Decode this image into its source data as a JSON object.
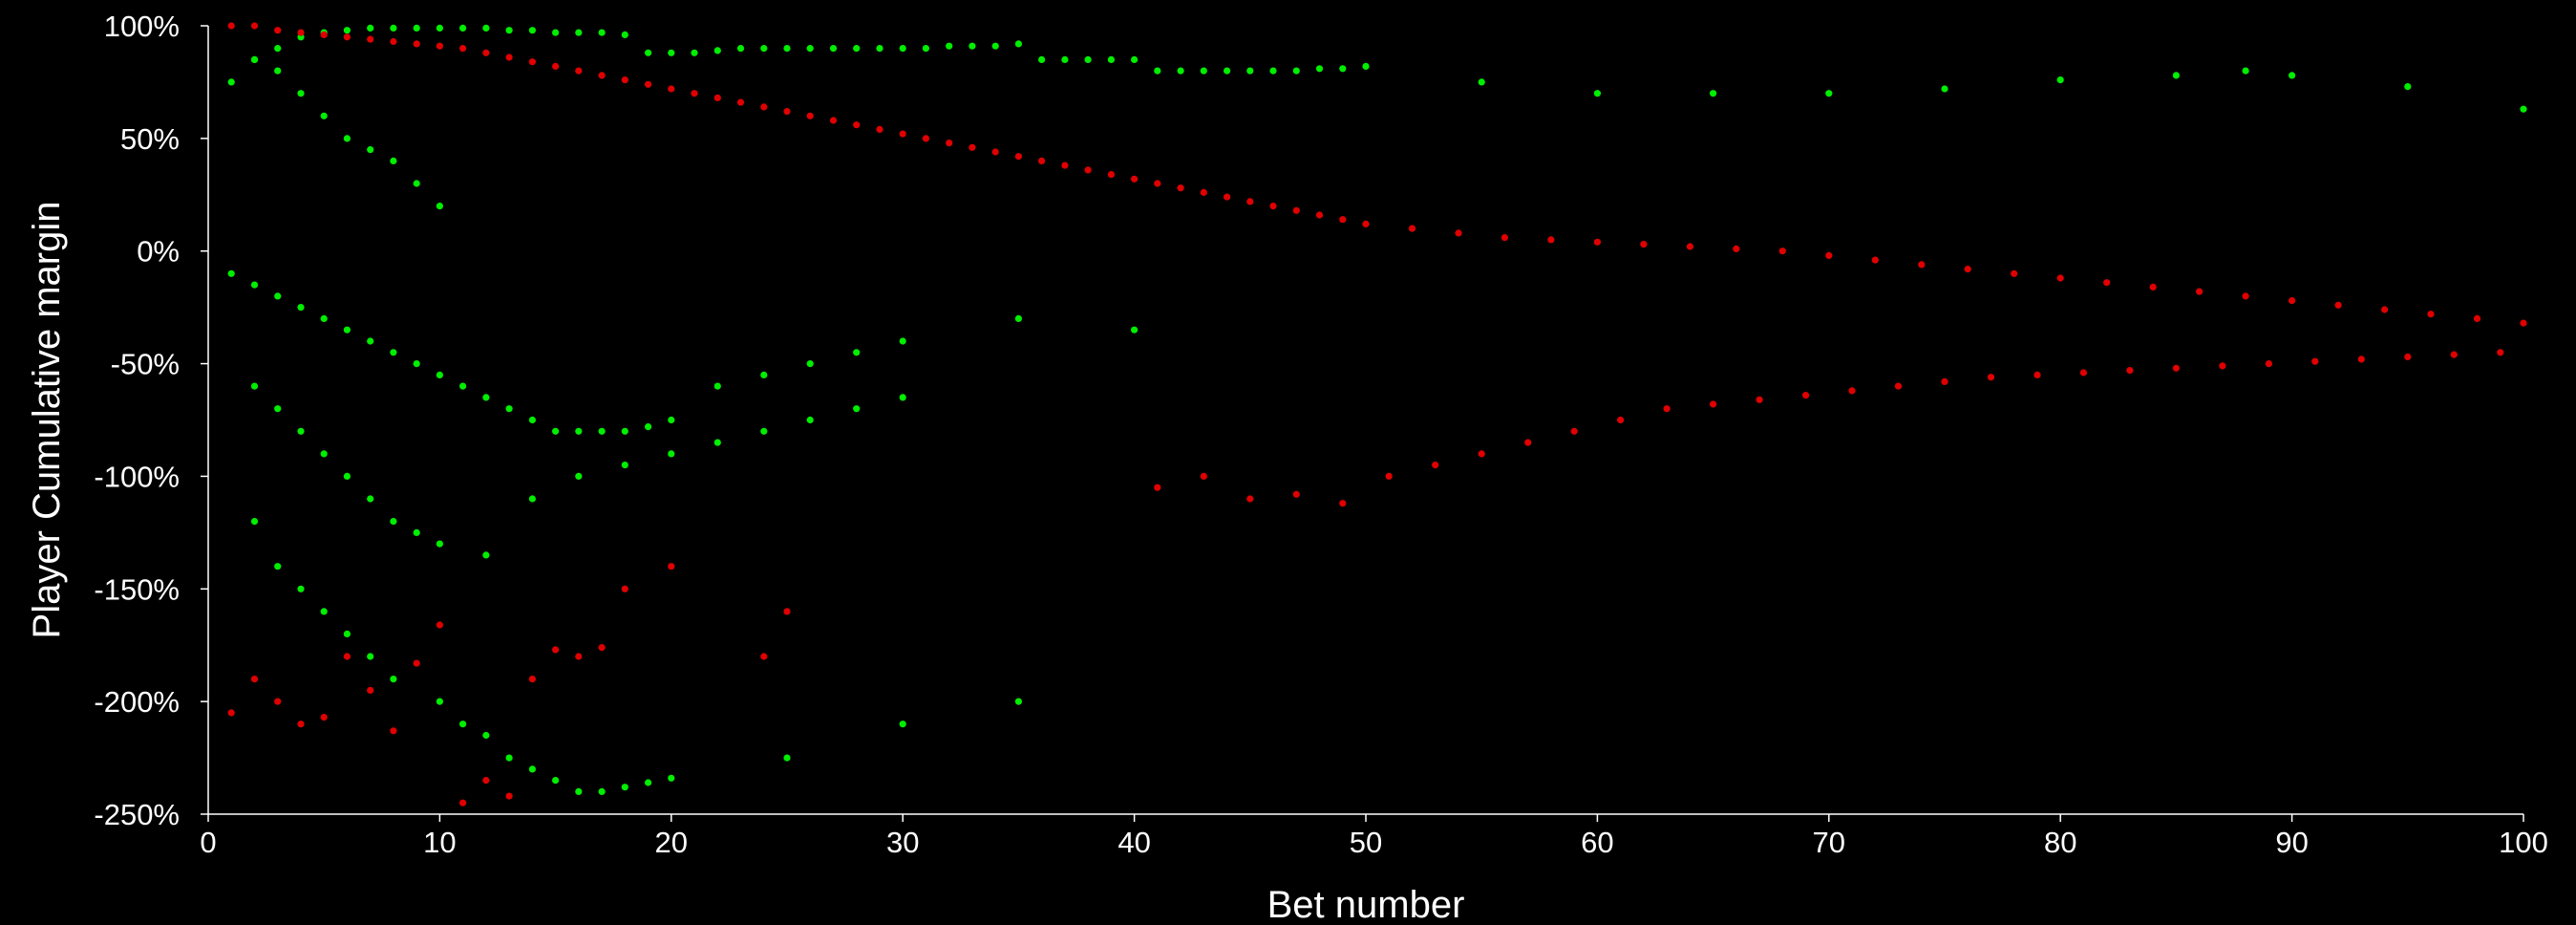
{
  "chart_data": {
    "type": "scatter",
    "title": "",
    "xlabel": "Bet number",
    "ylabel": "Player Cumulative margin",
    "xlim": [
      0,
      100
    ],
    "ylim": [
      -250,
      100
    ],
    "x_ticks": [
      0,
      10,
      20,
      30,
      40,
      50,
      60,
      70,
      80,
      90,
      100
    ],
    "x_tick_labels": [
      "0",
      "10",
      "20",
      "30",
      "40",
      "50",
      "60",
      "70",
      "80",
      "90",
      "100"
    ],
    "y_ticks": [
      100,
      50,
      0,
      -50,
      -100,
      -150,
      -200,
      -250
    ],
    "y_tick_labels": [
      "100%",
      "50%",
      "0%",
      "-50%",
      "-100%",
      "-150%",
      "-200%",
      "-250%"
    ],
    "grid": false,
    "legend": "none",
    "colors": {
      "background": "#000000",
      "positive": "#00ee00",
      "negative": "#e00000",
      "text": "#ffffff",
      "axis": "#ffffff"
    },
    "series": [
      {
        "color": "#00ee00",
        "x": [
          2,
          3,
          4,
          5,
          6,
          7,
          8,
          9,
          10,
          11,
          12,
          13,
          14,
          15,
          16,
          17,
          18,
          19,
          20,
          21,
          22,
          23,
          24,
          25,
          26,
          27,
          28,
          29,
          30,
          31,
          32,
          33,
          34,
          35,
          36,
          37,
          38,
          39,
          40,
          41,
          42,
          43,
          44,
          45,
          46,
          47,
          48,
          49,
          50,
          55,
          60,
          65,
          70,
          75,
          80,
          85,
          88,
          90,
          95,
          100,
          1,
          2,
          3,
          4,
          5,
          6,
          7,
          8,
          9,
          10,
          11,
          12,
          13,
          14,
          15,
          16,
          17,
          18,
          19,
          20,
          22,
          24,
          26,
          28,
          30,
          35,
          40,
          2,
          3,
          4,
          5,
          6,
          7,
          8,
          9,
          10,
          12,
          14,
          16,
          18,
          20,
          22,
          24,
          26,
          28,
          30,
          2,
          3,
          4,
          5,
          6,
          7,
          8,
          10,
          11,
          12,
          13,
          14,
          15,
          16,
          17,
          18,
          19,
          20,
          25,
          30,
          35,
          1,
          2,
          3,
          4,
          5,
          6,
          7,
          8,
          9,
          10
        ],
        "y": [
          85,
          90,
          95,
          97,
          98,
          99,
          99,
          99,
          99,
          99,
          99,
          98,
          98,
          97,
          97,
          97,
          96,
          88,
          88,
          88,
          89,
          90,
          90,
          90,
          90,
          90,
          90,
          90,
          90,
          90,
          91,
          91,
          91,
          92,
          85,
          85,
          85,
          85,
          85,
          80,
          80,
          80,
          80,
          80,
          80,
          80,
          81,
          81,
          82,
          75,
          70,
          70,
          70,
          72,
          76,
          78,
          80,
          78,
          73,
          63,
          -10,
          -15,
          -20,
          -25,
          -30,
          -35,
          -40,
          -45,
          -50,
          -55,
          -60,
          -65,
          -70,
          -75,
          -80,
          -80,
          -80,
          -80,
          -78,
          -75,
          -60,
          -55,
          -50,
          -45,
          -40,
          -30,
          -35,
          -60,
          -70,
          -80,
          -90,
          -100,
          -110,
          -120,
          -125,
          -130,
          -135,
          -110,
          -100,
          -95,
          -90,
          -85,
          -80,
          -75,
          -70,
          -65,
          -120,
          -140,
          -150,
          -160,
          -170,
          -180,
          -190,
          -200,
          -210,
          -215,
          -225,
          -230,
          -235,
          -240,
          -240,
          -238,
          -236,
          -234,
          -225,
          -210,
          -200,
          75,
          85,
          80,
          70,
          60,
          50,
          45,
          40,
          30,
          20
        ]
      },
      {
        "color": "#e00000",
        "x": [
          1,
          2,
          3,
          4,
          5,
          6,
          7,
          8,
          9,
          10,
          11,
          12,
          13,
          14,
          15,
          16,
          17,
          18,
          19,
          20,
          21,
          22,
          23,
          24,
          25,
          26,
          27,
          28,
          29,
          30,
          31,
          32,
          33,
          34,
          35,
          36,
          37,
          38,
          39,
          40,
          41,
          42,
          43,
          44,
          45,
          46,
          47,
          48,
          49,
          50,
          52,
          54,
          56,
          58,
          60,
          62,
          64,
          66,
          68,
          70,
          72,
          74,
          76,
          78,
          80,
          82,
          84,
          86,
          88,
          90,
          92,
          94,
          96,
          98,
          100,
          1,
          2,
          3,
          4,
          5,
          6,
          7,
          8,
          9,
          10,
          11,
          12,
          13,
          14,
          15,
          16,
          17,
          18,
          20,
          24,
          25,
          41,
          43,
          45,
          47,
          49,
          51,
          53,
          55,
          57,
          59,
          61,
          63,
          65,
          67,
          69,
          71,
          73,
          75,
          77,
          79,
          81,
          83,
          85,
          87,
          89,
          91,
          93,
          95,
          97,
          99
        ],
        "y": [
          100,
          100,
          98,
          97,
          96,
          95,
          94,
          93,
          92,
          91,
          90,
          88,
          86,
          84,
          82,
          80,
          78,
          76,
          74,
          72,
          70,
          68,
          66,
          64,
          62,
          60,
          58,
          56,
          54,
          52,
          50,
          48,
          46,
          44,
          42,
          40,
          38,
          36,
          34,
          32,
          30,
          28,
          26,
          24,
          22,
          20,
          18,
          16,
          14,
          12,
          10,
          8,
          6,
          5,
          4,
          3,
          2,
          1,
          0,
          -2,
          -4,
          -6,
          -8,
          -10,
          -12,
          -14,
          -16,
          -18,
          -20,
          -22,
          -24,
          -26,
          -28,
          -30,
          -32,
          -205,
          -190,
          -200,
          -210,
          -207,
          -180,
          -195,
          -213,
          -183,
          -166,
          -245,
          -235,
          -242,
          -190,
          -177,
          -180,
          -176,
          -150,
          -140,
          -180,
          -160,
          -105,
          -100,
          -110,
          -108,
          -112,
          -100,
          -95,
          -90,
          -85,
          -80,
          -75,
          -70,
          -68,
          -66,
          -64,
          -62,
          -60,
          -58,
          -56,
          -55,
          -54,
          -53,
          -52,
          -51,
          -50,
          -49,
          -48,
          -47,
          -46,
          -45
        ]
      }
    ]
  }
}
